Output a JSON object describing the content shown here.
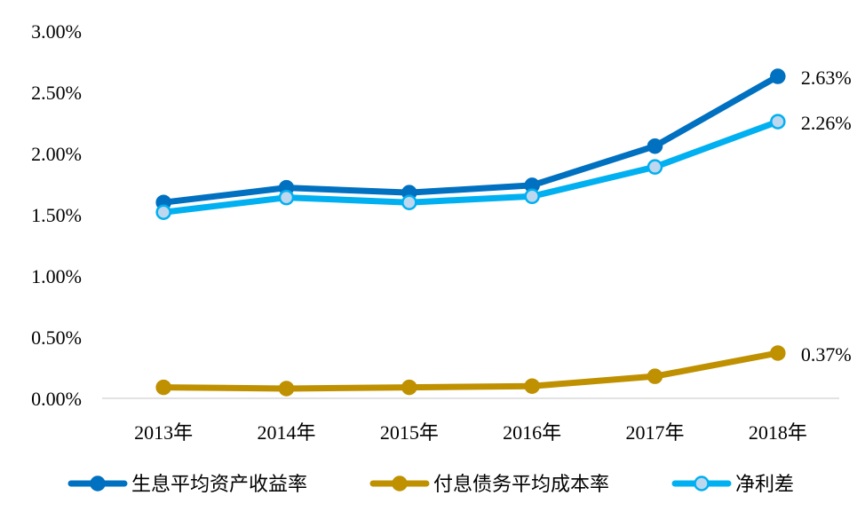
{
  "chart_data": {
    "type": "line",
    "title": "",
    "xlabel": "",
    "ylabel": "",
    "categories": [
      "2013年",
      "2014年",
      "2015年",
      "2016年",
      "2017年",
      "2018年"
    ],
    "ylim": [
      0,
      3.0
    ],
    "yticks": [
      "0.00%",
      "0.50%",
      "1.00%",
      "1.50%",
      "2.00%",
      "2.50%",
      "3.00%"
    ],
    "grid": false,
    "legend_position": "bottom",
    "series": [
      {
        "name": "生息平均资产收益率",
        "color": "#0070C0",
        "marker_fill": "#0070C0",
        "values": [
          1.6,
          1.72,
          1.68,
          1.74,
          2.06,
          2.63
        ],
        "end_label": "2.63%"
      },
      {
        "name": "付息债务平均成本率",
        "color": "#BF9000",
        "marker_fill": "#BF9000",
        "values": [
          0.09,
          0.08,
          0.09,
          0.1,
          0.18,
          0.37
        ],
        "end_label": "0.37%"
      },
      {
        "name": "净利差",
        "color": "#00B0F0",
        "marker_fill": "#BDD7EE",
        "values": [
          1.52,
          1.64,
          1.6,
          1.65,
          1.89,
          2.26
        ],
        "end_label": "2.26%"
      }
    ]
  }
}
